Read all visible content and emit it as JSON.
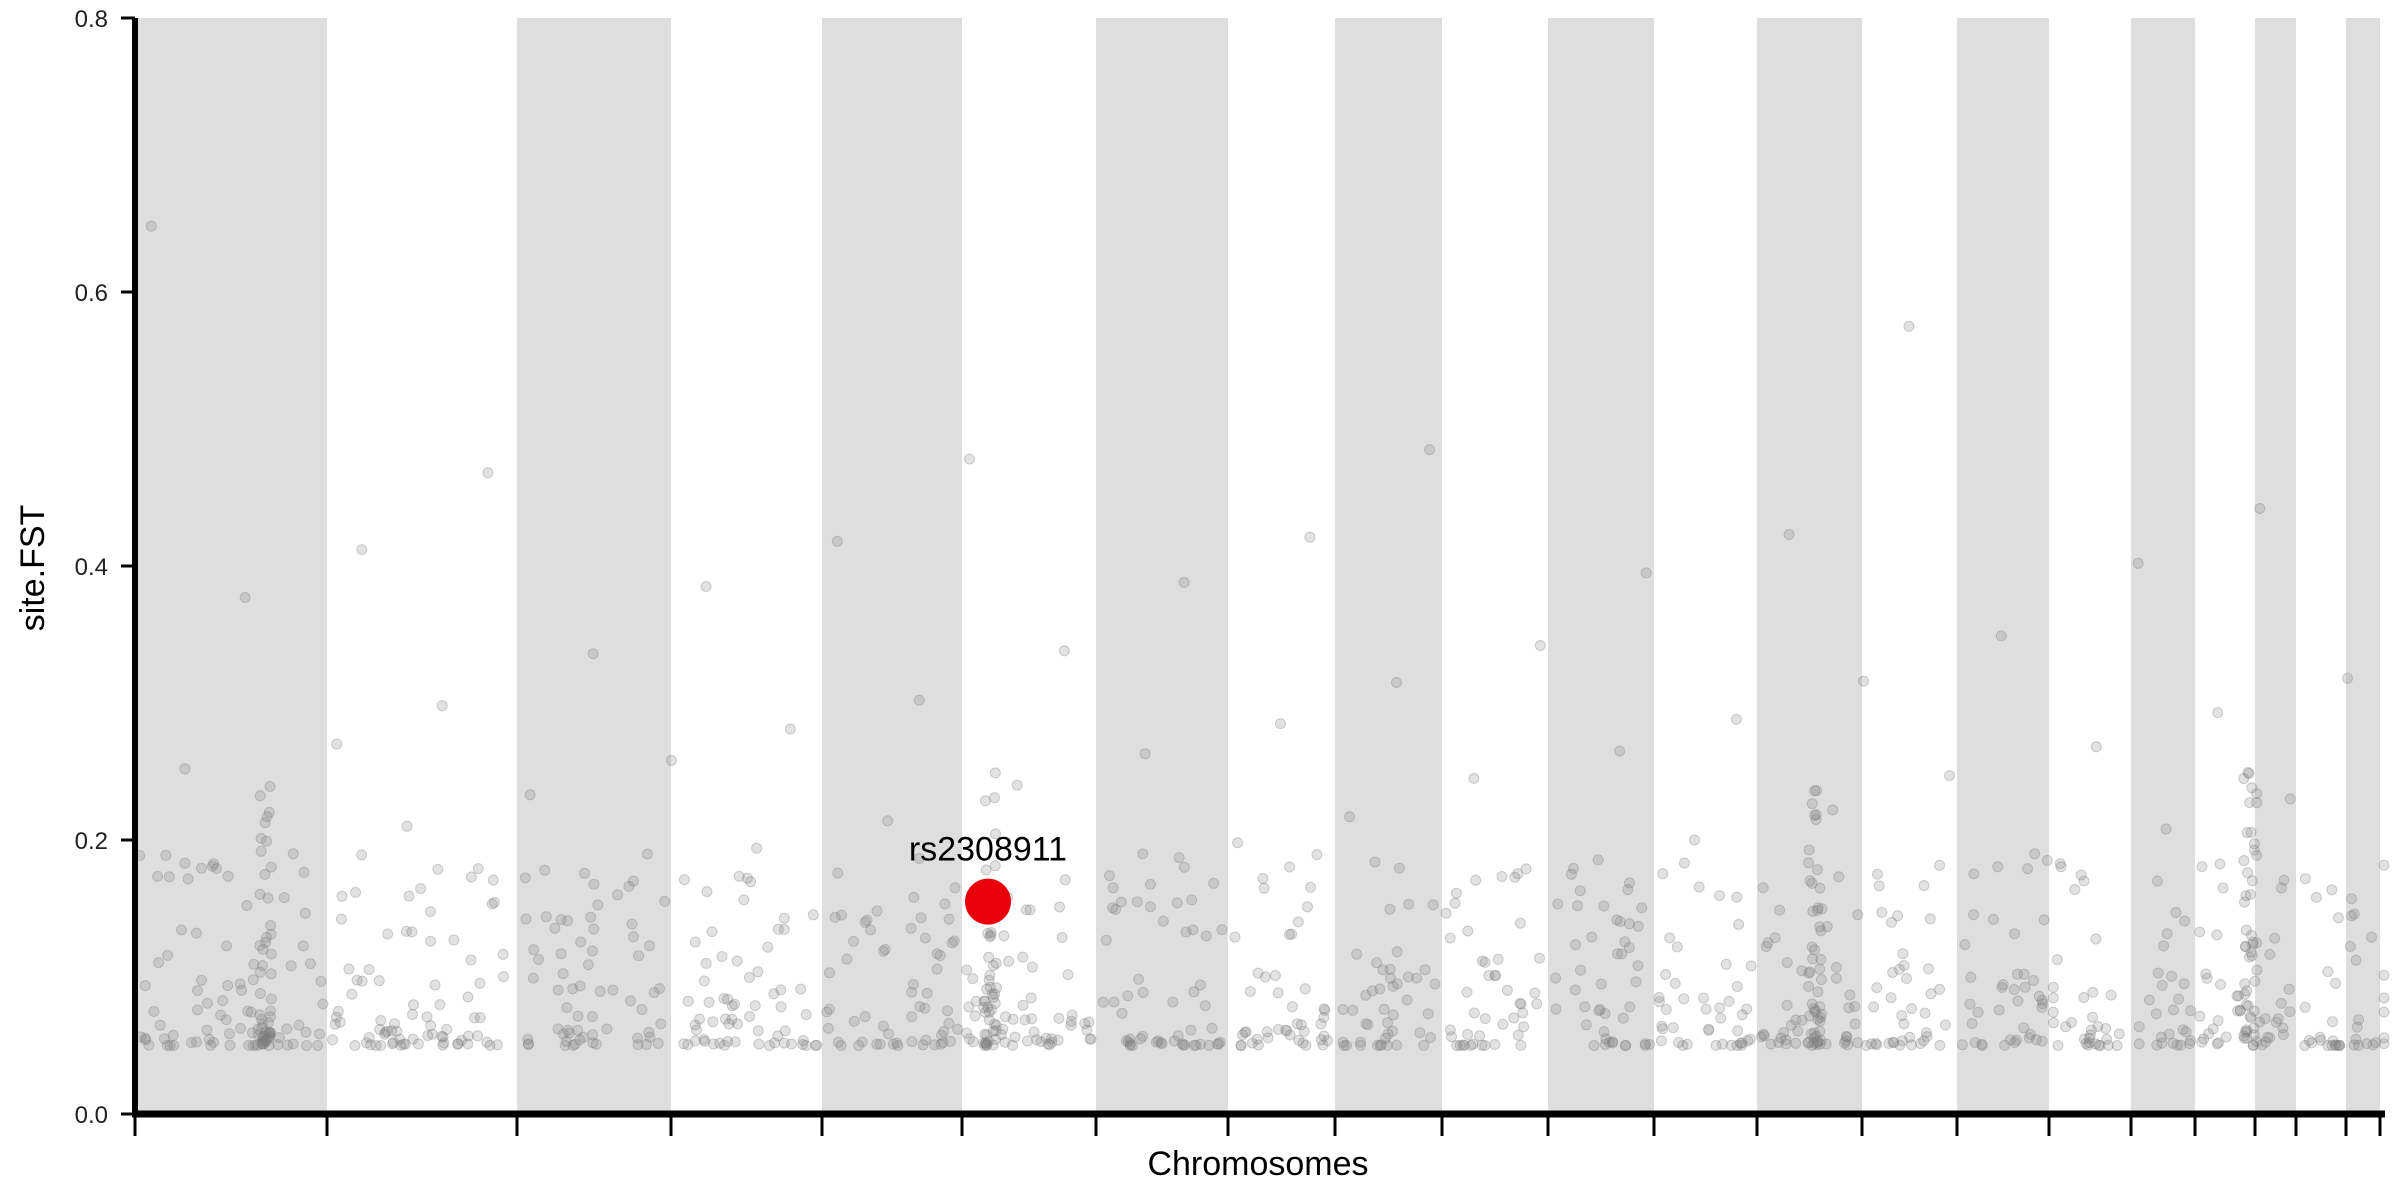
{
  "chart_data": {
    "type": "scatter",
    "title": "",
    "xlabel": "Chromosomes",
    "ylabel": "site.FST",
    "ylim": [
      0,
      0.8
    ],
    "y_ticks": [
      "0.0",
      "0.2",
      "0.4",
      "0.6",
      "0.8"
    ],
    "x_tick_labels": "none",
    "legend": "none",
    "colors": {
      "points": "#7a7a7a",
      "band": "#dedede",
      "highlight": "#e8000b",
      "axis": "#000000"
    },
    "chromosome_bands": "alternating grey and white background bands for 22 chromosome segments",
    "highlight": {
      "label": "rs2308911",
      "y": 0.155
    },
    "notable_points_y": [
      0.648,
      0.575,
      0.485,
      0.478,
      0.468,
      0.442,
      0.423,
      0.421,
      0.418,
      0.412,
      0.402,
      0.395,
      0.388,
      0.385,
      0.377,
      0.349,
      0.342,
      0.338,
      0.336,
      0.318,
      0.316,
      0.315,
      0.302,
      0.298,
      0.293,
      0.288,
      0.285,
      0.281,
      0.27,
      0.268,
      0.265,
      0.263,
      0.258,
      0.252,
      0.247,
      0.245,
      0.24,
      0.233,
      0.23,
      0.222,
      0.217,
      0.214,
      0.21,
      0.208,
      0.2,
      0.198,
      0.194,
      0.19,
      0.185,
      0.175,
      0.174,
      0.17
    ]
  }
}
